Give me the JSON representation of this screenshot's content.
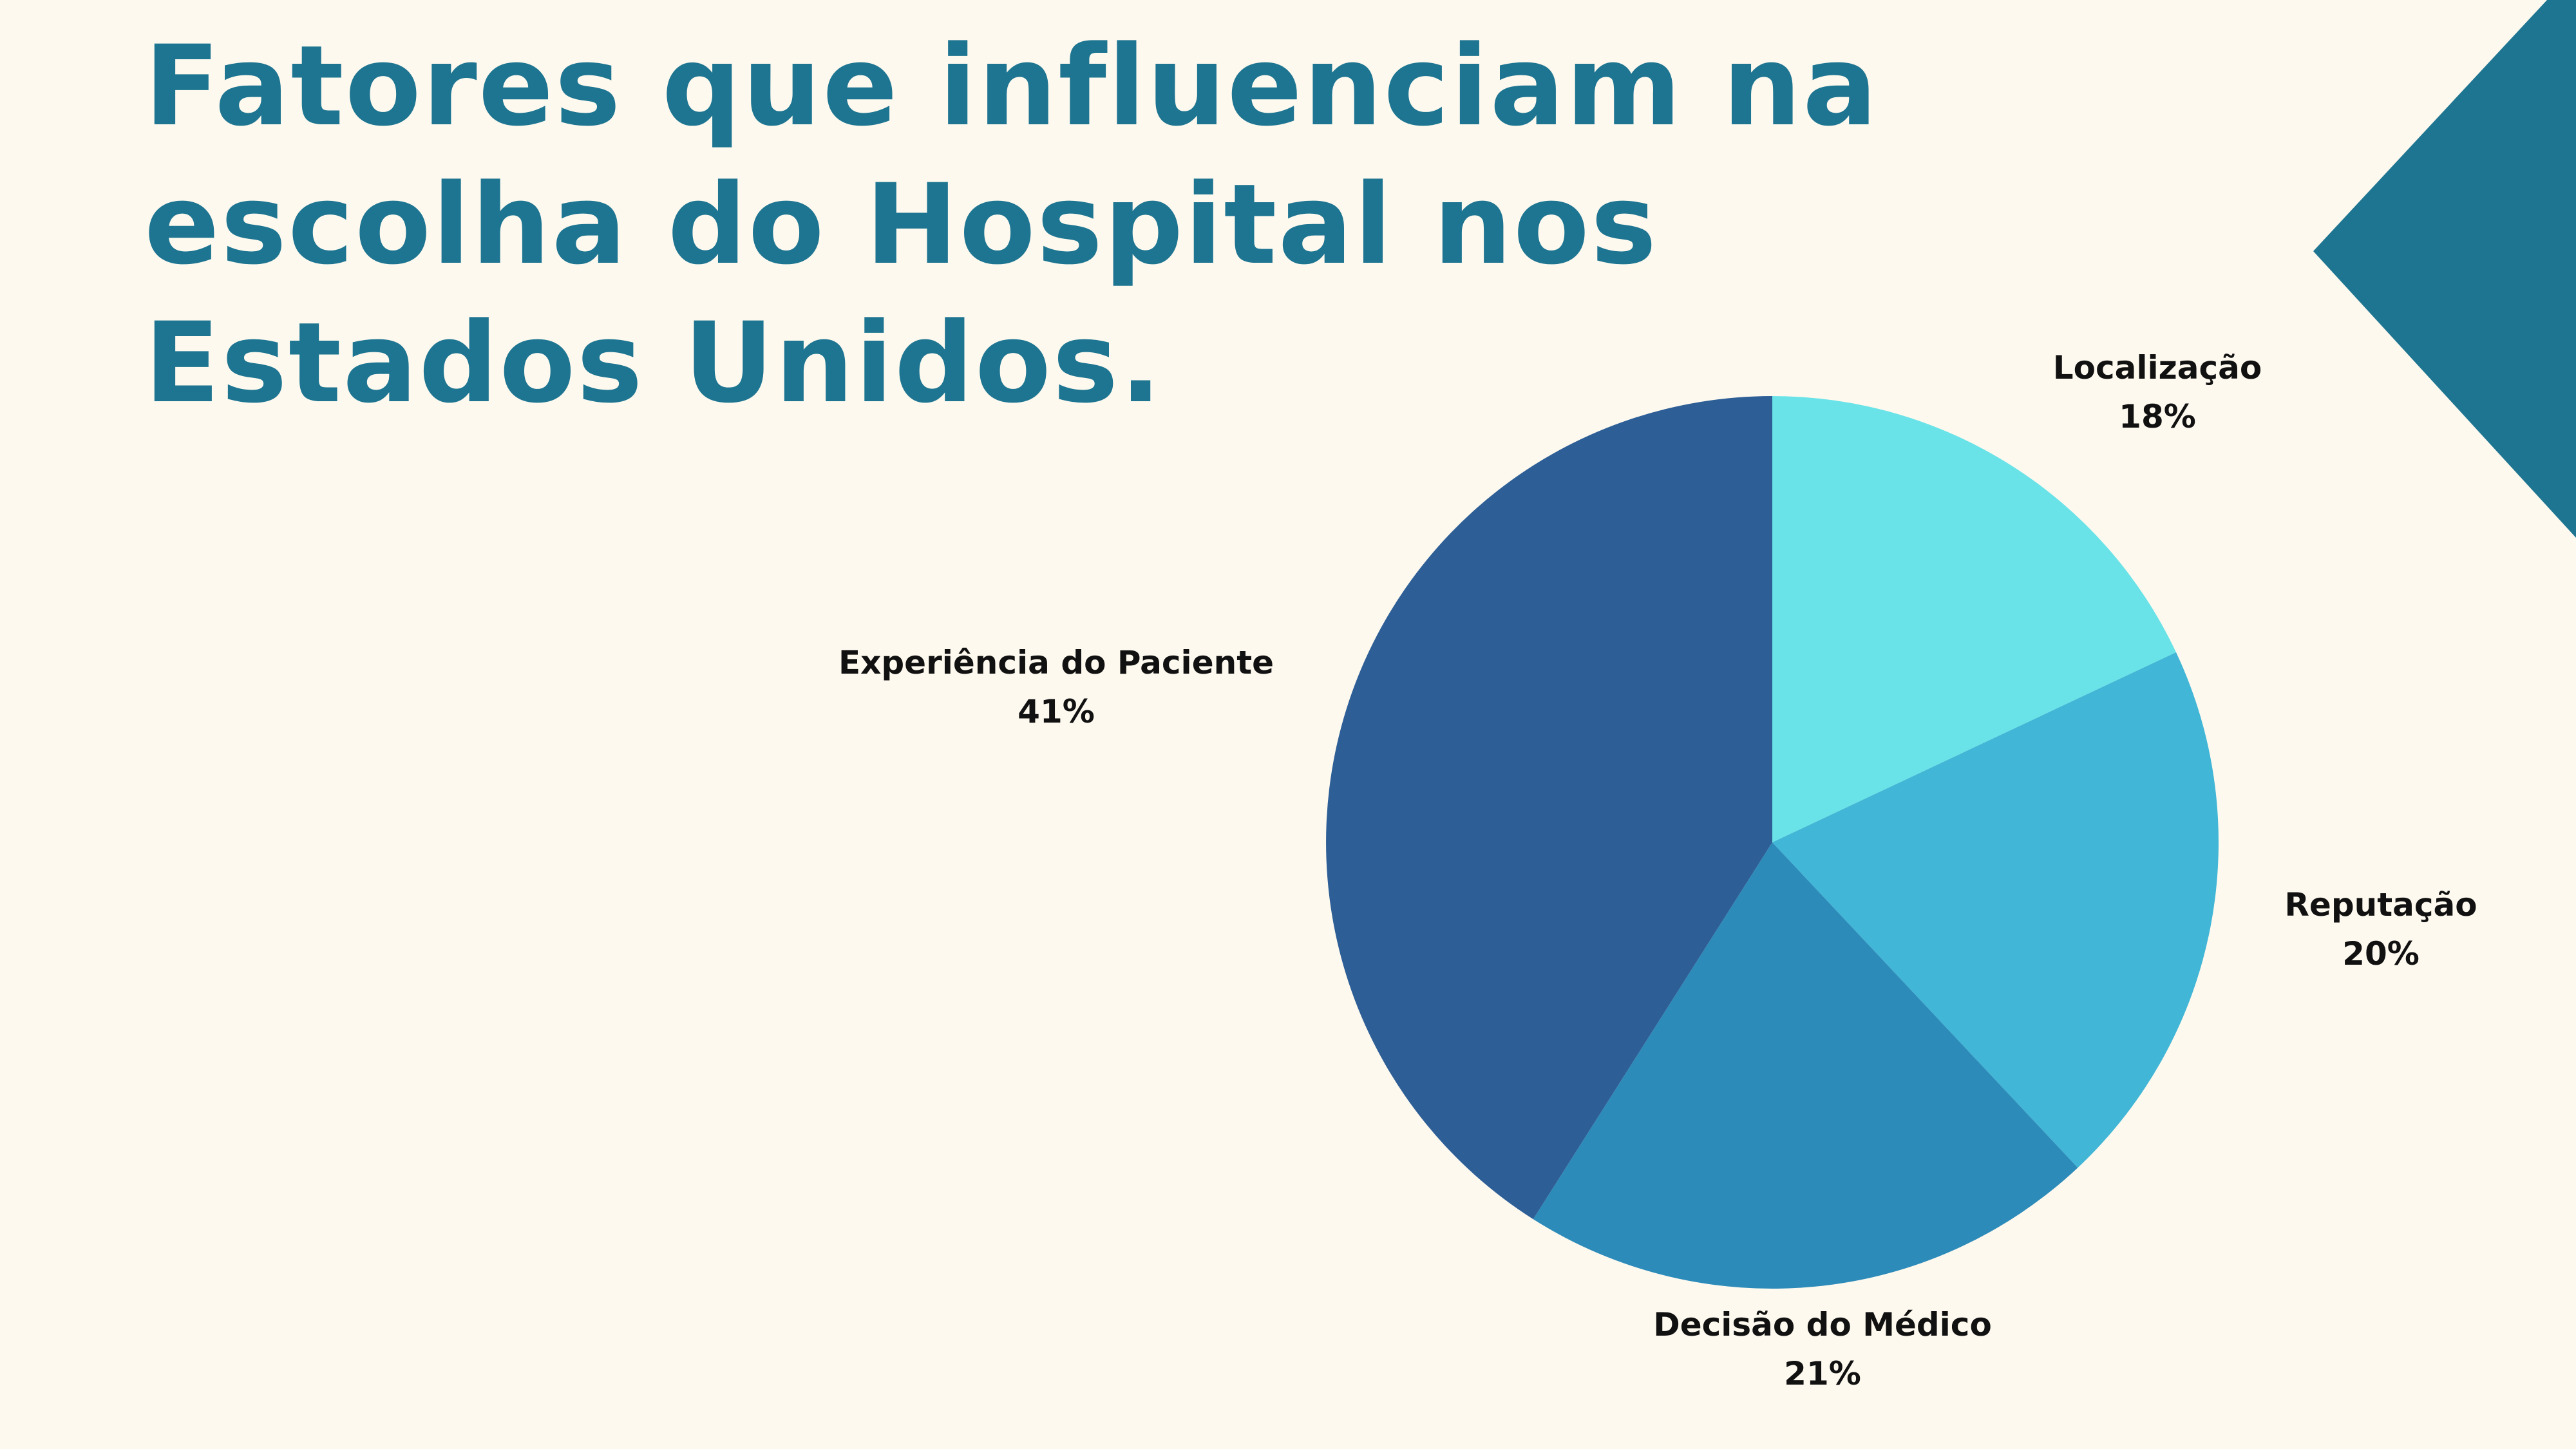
{
  "page": {
    "title": "Fatores que influenciam na escolha do Hospital nos Estados Unidos.",
    "title_color": "#1e7591",
    "background": "#fdf9ef",
    "decoration_color": "#1e7591"
  },
  "chart_data": {
    "type": "pie",
    "title": "Fatores que influenciam na escolha do Hospital nos Estados Unidos.",
    "start": "12 o'clock",
    "direction": "clockwise",
    "legend": "none",
    "slices": [
      {
        "label": "Localização",
        "value": 18,
        "value_label": "18%",
        "color": "#69e3e8"
      },
      {
        "label": "Reputação",
        "value": 20,
        "value_label": "20%",
        "color": "#41b6d6"
      },
      {
        "label": "Decisão do Médico",
        "value": 21,
        "value_label": "21%",
        "color": "#2d8bba"
      },
      {
        "label": "Experiência do Paciente",
        "value": 41,
        "value_label": "41%",
        "color": "#2d5e96"
      }
    ]
  }
}
